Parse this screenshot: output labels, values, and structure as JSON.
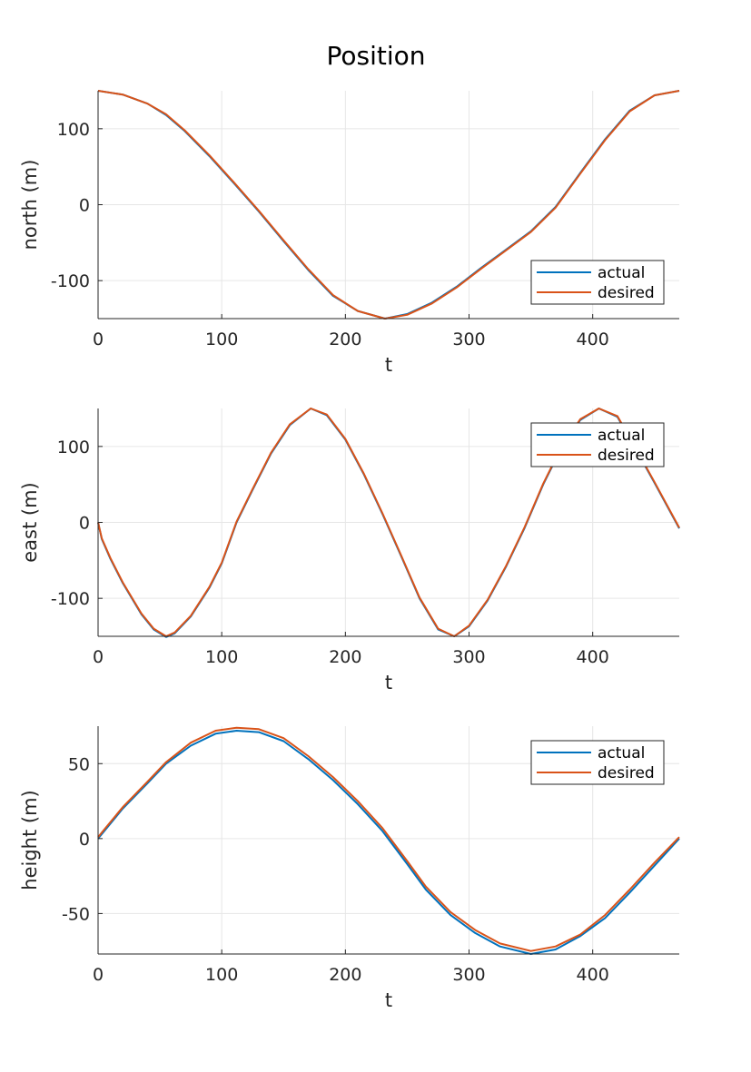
{
  "figure": {
    "title": "Position"
  },
  "colors": {
    "actual": "#0072BD",
    "desired": "#D95319",
    "grid": "#e6e6e6",
    "axis": "#262626"
  },
  "chart_data": [
    {
      "type": "line",
      "xlabel": "t",
      "ylabel": "north (m)",
      "xlim": [
        0,
        470
      ],
      "ylim": [
        -150,
        150
      ],
      "xticks": [
        0,
        100,
        200,
        300,
        400
      ],
      "yticks": [
        -100,
        0,
        100
      ],
      "xtick_labels": [
        "0",
        "100",
        "200",
        "300",
        "400"
      ],
      "ytick_labels": [
        "-100",
        "0",
        "100"
      ],
      "grid": true,
      "legend": "bottom-right",
      "series": [
        {
          "name": "actual",
          "x": [
            0,
            20,
            40,
            55,
            70,
            90,
            110,
            130,
            150,
            170,
            190,
            210,
            232,
            250,
            270,
            290,
            310,
            330,
            350,
            370,
            390,
            410,
            430,
            450,
            470
          ],
          "y": [
            150,
            145,
            133,
            118,
            97,
            64,
            28,
            -9,
            -48,
            -86,
            -120,
            -140,
            -150,
            -144,
            -129,
            -108,
            -83,
            -59,
            -35,
            -3,
            42,
            86,
            124,
            144,
            150
          ]
        },
        {
          "name": "desired",
          "x": [
            0,
            20,
            40,
            55,
            70,
            90,
            110,
            130,
            150,
            170,
            190,
            210,
            232,
            250,
            270,
            290,
            310,
            330,
            350,
            370,
            390,
            410,
            430,
            450,
            470
          ],
          "y": [
            150,
            145,
            133,
            119,
            98,
            65,
            29,
            -8,
            -47,
            -85,
            -119,
            -140,
            -150,
            -145,
            -130,
            -109,
            -84,
            -60,
            -36,
            -4,
            41,
            85,
            123,
            144,
            150
          ]
        }
      ]
    },
    {
      "type": "line",
      "xlabel": "t",
      "ylabel": "east (m)",
      "xlim": [
        0,
        470
      ],
      "ylim": [
        -150,
        150
      ],
      "xticks": [
        0,
        100,
        200,
        300,
        400
      ],
      "yticks": [
        -100,
        0,
        100
      ],
      "xtick_labels": [
        "0",
        "100",
        "200",
        "300",
        "400"
      ],
      "ytick_labels": [
        "-100",
        "0",
        "100"
      ],
      "grid": true,
      "legend": "top-right",
      "series": [
        {
          "name": "actual",
          "x": [
            0,
            3,
            10,
            20,
            35,
            45,
            55,
            62,
            75,
            90,
            100,
            112,
            125,
            140,
            155,
            172,
            185,
            200,
            215,
            230,
            245,
            260,
            275,
            288,
            300,
            315,
            330,
            345,
            360,
            375,
            390,
            405,
            420,
            435,
            450,
            470
          ],
          "y": [
            0,
            -22,
            -48,
            -80,
            -121,
            -141,
            -151,
            -146,
            -124,
            -86,
            -54,
            0,
            43,
            91,
            128,
            150,
            141,
            109,
            63,
            11,
            -44,
            -100,
            -141,
            -150,
            -137,
            -103,
            -58,
            -7,
            50,
            99,
            135,
            150,
            139,
            96,
            52,
            -8
          ]
        },
        {
          "name": "desired",
          "x": [
            0,
            3,
            10,
            20,
            35,
            45,
            55,
            62,
            75,
            90,
            100,
            112,
            125,
            140,
            155,
            172,
            185,
            200,
            215,
            230,
            245,
            260,
            275,
            288,
            300,
            315,
            330,
            345,
            360,
            375,
            390,
            405,
            420,
            435,
            450,
            470
          ],
          "y": [
            0,
            -21,
            -47,
            -79,
            -120,
            -140,
            -150,
            -145,
            -123,
            -85,
            -53,
            1,
            44,
            92,
            129,
            150,
            142,
            110,
            64,
            12,
            -43,
            -99,
            -140,
            -150,
            -136,
            -102,
            -57,
            -6,
            51,
            100,
            136,
            150,
            140,
            97,
            53,
            -7
          ]
        }
      ]
    },
    {
      "type": "line",
      "xlabel": "t",
      "ylabel": "height (m)",
      "xlim": [
        0,
        470
      ],
      "ylim": [
        -77,
        75
      ],
      "xticks": [
        0,
        100,
        200,
        300,
        400
      ],
      "yticks": [
        -50,
        0,
        50
      ],
      "xtick_labels": [
        "0",
        "100",
        "200",
        "300",
        "400"
      ],
      "ytick_labels": [
        "-50",
        "0",
        "50"
      ],
      "grid": true,
      "legend": "top-right",
      "series": [
        {
          "name": "actual",
          "x": [
            0,
            5,
            20,
            40,
            55,
            75,
            95,
            112,
            130,
            150,
            170,
            190,
            210,
            230,
            250,
            265,
            285,
            305,
            325,
            350,
            370,
            390,
            410,
            430,
            450,
            470
          ],
          "y": [
            0,
            5,
            20,
            37,
            50,
            62,
            70,
            72,
            71,
            65,
            53,
            39,
            23,
            5,
            -17,
            -34,
            -51,
            -63,
            -72,
            -77,
            -74,
            -65,
            -53,
            -36,
            -18,
            0
          ]
        },
        {
          "name": "desired",
          "x": [
            0,
            5,
            20,
            40,
            55,
            75,
            95,
            112,
            130,
            150,
            170,
            190,
            210,
            230,
            250,
            265,
            285,
            305,
            325,
            350,
            370,
            390,
            410,
            430,
            450,
            470
          ],
          "y": [
            1,
            6,
            21,
            38,
            51,
            64,
            72,
            74,
            73,
            67,
            55,
            41,
            25,
            7,
            -15,
            -32,
            -49,
            -61,
            -70,
            -75,
            -72,
            -64,
            -51,
            -34,
            -16,
            1
          ]
        }
      ]
    }
  ]
}
